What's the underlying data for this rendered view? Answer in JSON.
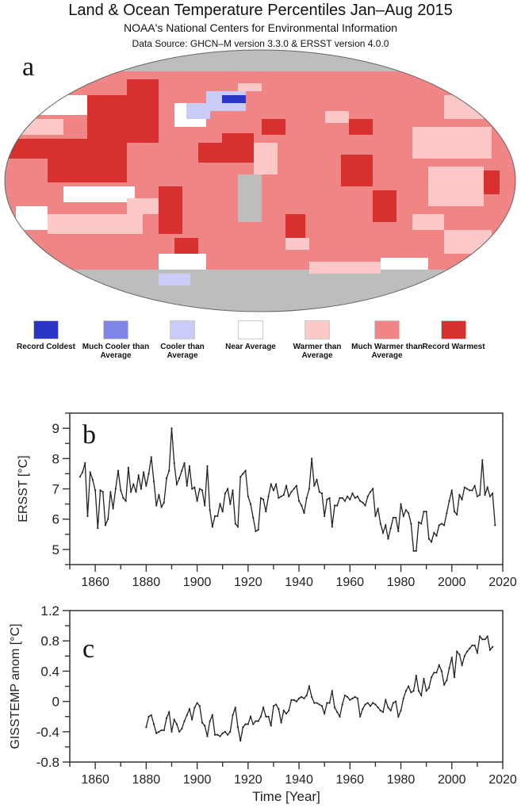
{
  "header": {
    "title": "Land & Ocean Temperature Percentiles Jan–Aug 2015",
    "subtitle": "NOAA's National Centers for Environmental Information",
    "source": "Data Source: GHCN–M version 3.3.0 & ERSST version 4.0.0"
  },
  "map": {
    "panel_label": "a",
    "legend": [
      {
        "label": "Record Coldest",
        "color": "#2b35c8"
      },
      {
        "label": "Much Cooler than Average",
        "color": "#7f85e6"
      },
      {
        "label": "Cooler than Average",
        "color": "#c9ccf7"
      },
      {
        "label": "Near Average",
        "color": "#ffffff"
      },
      {
        "label": "Warmer than Average",
        "color": "#fcc8c8"
      },
      {
        "label": "Much Warmer than Average",
        "color": "#ef8585"
      },
      {
        "label": "Record Warmest",
        "color": "#d8302e"
      }
    ],
    "no_data_color": "#bdbdbd"
  },
  "chart_data": [
    {
      "type": "line",
      "panel_label": "b",
      "title": "",
      "xlabel": "",
      "ylabel": "ERSST [°C]",
      "xlim": [
        1850,
        2020
      ],
      "ylim": [
        4.5,
        9.5
      ],
      "xticks": [
        1860,
        1880,
        1900,
        1920,
        1940,
        1960,
        1980,
        2000,
        2020
      ],
      "yticks": [
        5,
        6,
        7,
        8,
        9
      ],
      "grid": false,
      "series": [
        {
          "name": "ERSST",
          "x_start": 1854,
          "values": [
            7.4,
            7.55,
            7.85,
            6.1,
            7.55,
            7.3,
            6.95,
            5.7,
            6.95,
            6.9,
            5.8,
            6.0,
            6.9,
            6.35,
            7.0,
            7.6,
            6.95,
            6.7,
            6.6,
            7.7,
            6.9,
            7.15,
            6.9,
            7.45,
            7.0,
            7.55,
            7.1,
            7.5,
            8.05,
            7.25,
            6.45,
            6.8,
            6.4,
            6.55,
            7.35,
            7.6,
            9.0,
            7.85,
            7.15,
            7.35,
            7.6,
            7.85,
            7.1,
            7.75,
            7.0,
            7.05,
            6.6,
            7.0,
            6.95,
            6.45,
            7.75,
            6.3,
            5.75,
            6.1,
            6.1,
            6.5,
            6.25,
            6.85,
            7.0,
            6.5,
            6.95,
            5.85,
            5.75,
            7.4,
            7.5,
            7.6,
            6.75,
            6.5,
            6.05,
            5.6,
            5.65,
            6.7,
            6.65,
            6.25,
            6.75,
            7.15,
            6.95,
            7.15,
            6.7,
            6.75,
            6.8,
            7.1,
            6.75,
            6.9,
            7.0,
            7.1,
            6.6,
            6.45,
            6.2,
            6.7,
            7.0,
            8.0,
            7.1,
            7.3,
            6.9,
            6.85,
            6.1,
            6.65,
            6.7,
            5.75,
            6.45,
            6.45,
            6.7,
            6.7,
            6.6,
            6.75,
            6.65,
            6.85,
            6.7,
            6.75,
            6.6,
            6.55,
            6.45,
            6.75,
            6.9,
            7.0,
            6.1,
            6.35,
            5.85,
            5.55,
            5.8,
            5.35,
            5.7,
            6.05,
            6.05,
            5.6,
            6.5,
            6.1,
            6.3,
            6.2,
            5.85,
            4.95,
            4.95,
            5.9,
            5.85,
            6.25,
            6.25,
            5.35,
            5.25,
            5.55,
            5.45,
            5.8,
            5.85,
            5.8,
            6.2,
            6.6,
            6.95,
            6.25,
            6.15,
            6.8,
            6.65,
            7.05,
            7.0,
            6.95,
            6.95,
            7.1,
            6.75,
            6.8,
            7.95,
            6.8,
            7.05,
            6.75,
            6.85,
            5.8
          ]
        }
      ]
    },
    {
      "type": "line",
      "panel_label": "c",
      "title": "",
      "xlabel": "Time [Year]",
      "ylabel": "GISSTEMP anom [°C]",
      "xlim": [
        1850,
        2020
      ],
      "ylim": [
        -0.8,
        1.2
      ],
      "xticks": [
        1860,
        1880,
        1900,
        1920,
        1940,
        1960,
        1980,
        2000,
        2020
      ],
      "yticks": [
        -0.8,
        -0.4,
        0,
        0.4,
        0.8,
        1.2
      ],
      "ytick_labels": [
        "-0.8",
        "-0.4",
        "0",
        "0.4",
        "0.8",
        "1.2"
      ],
      "grid": false,
      "series": [
        {
          "name": "GISTEMP anomaly",
          "x_start": 1880,
          "values": [
            -0.34,
            -0.2,
            -0.18,
            -0.3,
            -0.42,
            -0.4,
            -0.38,
            -0.38,
            -0.22,
            -0.14,
            -0.4,
            -0.24,
            -0.3,
            -0.4,
            -0.36,
            -0.26,
            -0.18,
            -0.1,
            -0.24,
            -0.08,
            -0.02,
            -0.06,
            -0.28,
            -0.32,
            -0.46,
            -0.26,
            -0.18,
            -0.44,
            -0.44,
            -0.46,
            -0.42,
            -0.4,
            -0.44,
            -0.4,
            -0.18,
            -0.08,
            -0.34,
            -0.52,
            -0.34,
            -0.3,
            -0.3,
            -0.2,
            -0.3,
            -0.26,
            -0.26,
            -0.2,
            -0.08,
            -0.2,
            -0.2,
            -0.32,
            -0.06,
            -0.04,
            -0.1,
            -0.28,
            -0.12,
            -0.16,
            -0.12,
            0.02,
            0.02,
            0.0,
            0.04,
            0.06,
            0.04,
            0.08,
            0.2,
            0.06,
            -0.02,
            -0.02,
            -0.04,
            -0.06,
            -0.16,
            -0.02,
            -0.02,
            0.14,
            -0.08,
            -0.14,
            -0.2,
            -0.04,
            0.08,
            0.06,
            0.02,
            0.04,
            0.06,
            0.04,
            -0.2,
            -0.1,
            -0.04,
            -0.02,
            -0.06,
            -0.02,
            -0.04,
            -0.08,
            -0.12,
            -0.14,
            0.02,
            -0.08,
            -0.12,
            -0.02,
            0.0,
            -0.2,
            -0.12,
            0.04,
            0.14,
            0.2,
            0.12,
            0.14,
            0.34,
            0.14,
            0.08,
            0.3,
            0.14,
            0.18,
            0.32,
            0.38,
            0.38,
            0.48,
            0.4,
            0.22,
            0.28,
            0.44,
            0.58,
            0.32,
            0.66,
            0.62,
            0.48,
            0.6,
            0.66,
            0.7,
            0.74,
            0.74,
            0.64,
            0.86,
            0.82,
            0.82,
            0.86,
            0.68,
            0.72
          ]
        }
      ]
    }
  ]
}
